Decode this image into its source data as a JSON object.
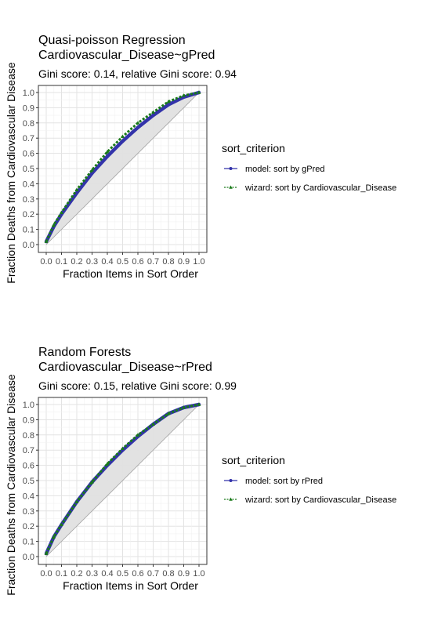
{
  "chart_data": [
    {
      "type": "line",
      "title": "Quasi-poisson Regression",
      "title_line2": "Cardiovascular_Disease~gPred",
      "subtitle": "Gini score: 0.14, relative Gini score: 0.94",
      "xlabel": "Fraction Items in Sort Order",
      "ylabel": "Fraction Deaths from Cardiovascular Disease",
      "xlim": [
        0,
        1
      ],
      "ylim": [
        0,
        1
      ],
      "xticks": [
        "0.0",
        "0.1",
        "0.2",
        "0.3",
        "0.4",
        "0.5",
        "0.6",
        "0.7",
        "0.8",
        "0.9",
        "1.0"
      ],
      "yticks": [
        "0.0",
        "0.1",
        "0.2",
        "0.3",
        "0.4",
        "0.5",
        "0.6",
        "0.7",
        "0.8",
        "0.9",
        "1.0"
      ],
      "grid": true,
      "legend": {
        "title": "sort_criterion",
        "position": "right",
        "entries": [
          "model: sort by gPred",
          "wizard: sort by Cardiovascular_Disease"
        ]
      },
      "colors": {
        "model": "#3333aa",
        "wizard": "#1a7a1a",
        "shade": "#e0e0e0",
        "diagonal": "#a0a0a0"
      },
      "x": [
        0,
        0.05,
        0.1,
        0.2,
        0.3,
        0.4,
        0.5,
        0.6,
        0.7,
        0.8,
        0.9,
        1.0
      ],
      "series": [
        {
          "name": "model: sort by gPred",
          "values": [
            0.02,
            0.12,
            0.2,
            0.34,
            0.47,
            0.58,
            0.68,
            0.77,
            0.85,
            0.92,
            0.97,
            1.0
          ]
        },
        {
          "name": "wizard: sort by Cardiovascular_Disease",
          "values": [
            0.02,
            0.13,
            0.21,
            0.36,
            0.49,
            0.61,
            0.71,
            0.8,
            0.87,
            0.94,
            0.98,
            1.0
          ]
        }
      ]
    },
    {
      "type": "line",
      "title": "Random Forests",
      "title_line2": "Cardiovascular_Disease~rPred",
      "subtitle": "Gini score: 0.15, relative Gini score: 0.99",
      "xlabel": "Fraction Items in Sort Order",
      "ylabel": "Fraction Deaths from Cardiovascular Disease",
      "xlim": [
        0,
        1
      ],
      "ylim": [
        0,
        1
      ],
      "xticks": [
        "0.0",
        "0.1",
        "0.2",
        "0.3",
        "0.4",
        "0.5",
        "0.6",
        "0.7",
        "0.8",
        "0.9",
        "1.0"
      ],
      "yticks": [
        "0.0",
        "0.1",
        "0.2",
        "0.3",
        "0.4",
        "0.5",
        "0.6",
        "0.7",
        "0.8",
        "0.9",
        "1.0"
      ],
      "grid": true,
      "legend": {
        "title": "sort_criterion",
        "position": "right",
        "entries": [
          "model: sort by rPred",
          "wizard: sort by Cardiovascular_Disease"
        ]
      },
      "colors": {
        "model": "#3333aa",
        "wizard": "#1a7a1a",
        "shade": "#e0e0e0",
        "diagonal": "#a0a0a0"
      },
      "x": [
        0,
        0.05,
        0.1,
        0.2,
        0.3,
        0.4,
        0.5,
        0.6,
        0.7,
        0.8,
        0.9,
        1.0
      ],
      "series": [
        {
          "name": "model: sort by rPred",
          "values": [
            0.02,
            0.13,
            0.21,
            0.36,
            0.49,
            0.6,
            0.7,
            0.79,
            0.87,
            0.94,
            0.98,
            1.0
          ]
        },
        {
          "name": "wizard: sort by Cardiovascular_Disease",
          "values": [
            0.02,
            0.13,
            0.21,
            0.36,
            0.49,
            0.61,
            0.71,
            0.8,
            0.87,
            0.94,
            0.98,
            1.0
          ]
        }
      ]
    }
  ]
}
